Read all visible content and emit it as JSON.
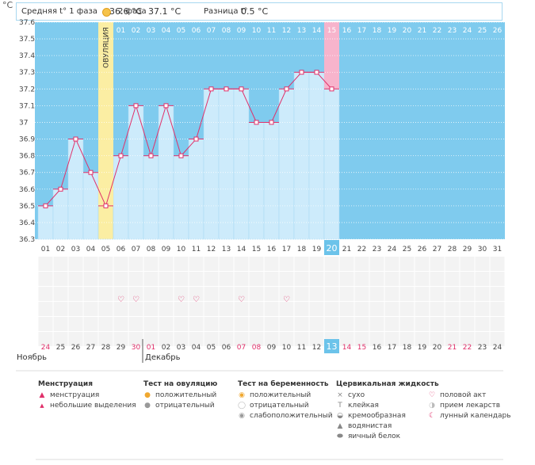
{
  "unit": "°C",
  "stats": {
    "phase1_label": "Средняя t° 1 фаза",
    "phase1_value": "36.6 °C",
    "phase2_label": "2 фаза",
    "phase2_value": "37.1 °C",
    "diff_label": "Разница t°",
    "diff_value": "0.5 °C"
  },
  "ovulation_label": "ОВУЛЯЦИЯ",
  "chart_data": {
    "type": "line",
    "title": "",
    "ylabel": "°C",
    "ylim": [
      36.3,
      37.6
    ],
    "yticks": [
      "36.3",
      "36.4",
      "36.5",
      "36.6",
      "36.7",
      "36.8",
      "36.9",
      "37",
      "37.1",
      "37.2",
      "37.3",
      "37.4",
      "37.5",
      "37.6"
    ],
    "cycle_days": [
      "01",
      "02",
      "03",
      "04",
      "05",
      "06",
      "07",
      "08",
      "09",
      "10",
      "11",
      "12",
      "13",
      "14",
      "15",
      "16",
      "17",
      "18",
      "19",
      "20",
      "21",
      "22",
      "23",
      "24",
      "25",
      "26",
      "27",
      "28",
      "29",
      "30",
      "31"
    ],
    "post_ovulation_days": [
      "01",
      "02",
      "03",
      "04",
      "05",
      "06",
      "07",
      "08",
      "09",
      "10",
      "11",
      "12",
      "13",
      "14",
      "15",
      "16",
      "17",
      "18",
      "19",
      "20",
      "21",
      "22",
      "23",
      "24",
      "25",
      "26"
    ],
    "temperatures": [
      36.5,
      36.6,
      36.9,
      36.7,
      36.5,
      36.8,
      37.1,
      36.8,
      37.1,
      36.8,
      36.9,
      37.2,
      37.2,
      37.2,
      37.0,
      37.0,
      37.2,
      37.3,
      37.3,
      37.2
    ],
    "ovulation_day_index": 4,
    "highlight_day_index": 19,
    "highlight_post_day_index": 14,
    "calendar_dates": [
      "24",
      "25",
      "26",
      "27",
      "28",
      "29",
      "30",
      "01",
      "02",
      "03",
      "04",
      "05",
      "06",
      "07",
      "08",
      "09",
      "10",
      "11",
      "12",
      "13",
      "14",
      "15",
      "16",
      "17",
      "18",
      "19",
      "20",
      "21",
      "22",
      "23",
      "24"
    ],
    "red_date_indexes": [
      0,
      6,
      7,
      13,
      14,
      19,
      20,
      21,
      27,
      28
    ],
    "intercourse_day_indexes": [
      5,
      6,
      9,
      10,
      13,
      16
    ]
  },
  "months": {
    "first": "Ноябрь",
    "second": "Декабрь"
  },
  "legend": {
    "menstruation": {
      "title": "Менструация",
      "items": [
        "менструация",
        "небольшие выделения"
      ]
    },
    "ovulation_test": {
      "title": "Тест на овуляцию",
      "items": [
        "положительный",
        "отрицательный"
      ]
    },
    "pregnancy_test": {
      "title": "Тест на беременность",
      "items": [
        "положительный",
        "отрицательный",
        "слабоположительный"
      ]
    },
    "cervical": {
      "title": "Цервикальная жидкость",
      "items": [
        "сухо",
        "клейкая",
        "кремообразная",
        "водянистая",
        "яичный белок"
      ]
    },
    "other": {
      "items": [
        "половой акт",
        "прием лекарств",
        "лунный календарь"
      ]
    }
  },
  "colors": {
    "sky": "#7fcbee",
    "bar": "#cdebfb",
    "bar_edge": "#a6d8f3",
    "line": "#e0306a",
    "ovulation": "#fbeea3",
    "highlight": "#f7b4cc",
    "highlight_cell": "#6cc3ea",
    "red": "#e0306a"
  }
}
